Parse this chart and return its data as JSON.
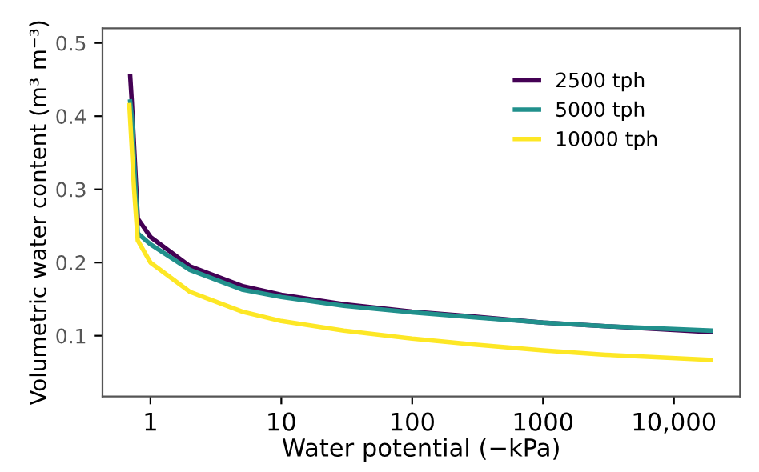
{
  "chart_data": {
    "type": "line",
    "xlabel": "Water potential (−kPa)",
    "ylabel": "Volumetric water content (m³ m⁻³)",
    "log": "x",
    "xlim": [
      0.43,
      32000
    ],
    "ylim": [
      0.017,
      0.52
    ],
    "xticks": [
      1,
      10,
      100,
      1000,
      {
        "value": 10000,
        "label": "10,000"
      }
    ],
    "yticks": [
      0.1,
      0.2,
      0.3,
      0.4,
      0.5
    ],
    "grid": false,
    "legend": "top right",
    "marker": "none",
    "line_style": "solid",
    "series": [
      {
        "name": "2500 tph",
        "color": "#440154",
        "x": [
          0.7,
          0.72,
          0.8,
          1,
          2,
          5,
          10,
          30,
          100,
          300,
          1000,
          3000,
          19000
        ],
        "values": [
          0.455,
          0.42,
          0.26,
          0.235,
          0.195,
          0.168,
          0.156,
          0.143,
          0.133,
          0.126,
          0.118,
          0.113,
          0.105
        ]
      },
      {
        "name": "5000 tph",
        "color": "#21908c",
        "x": [
          0.7,
          0.72,
          0.8,
          1,
          2,
          5,
          10,
          30,
          100,
          300,
          1000,
          3000,
          19000
        ],
        "values": [
          0.42,
          0.4,
          0.24,
          0.225,
          0.19,
          0.163,
          0.153,
          0.141,
          0.132,
          0.125,
          0.118,
          0.113,
          0.107
        ]
      },
      {
        "name": "10000 tph",
        "color": "#fde725",
        "x": [
          0.69,
          0.75,
          0.8,
          1,
          2,
          5,
          10,
          30,
          100,
          300,
          1000,
          3000,
          19000
        ],
        "values": [
          0.415,
          0.3,
          0.23,
          0.2,
          0.16,
          0.133,
          0.12,
          0.107,
          0.096,
          0.088,
          0.08,
          0.074,
          0.067
        ]
      }
    ]
  }
}
